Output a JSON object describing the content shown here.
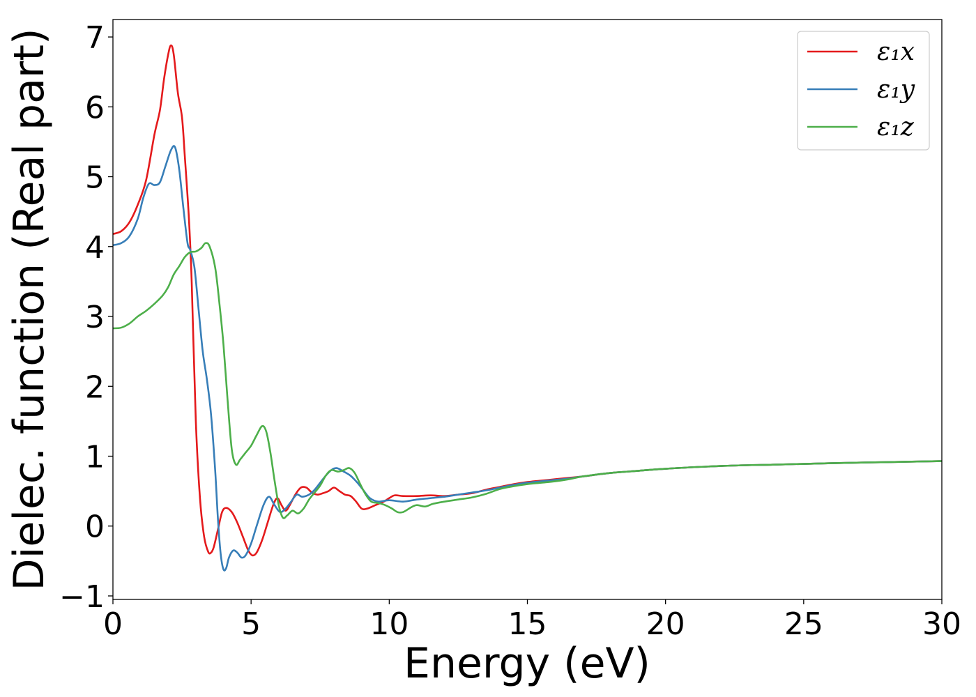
{
  "chart_data": {
    "type": "line",
    "xlabel": "Energy (eV)",
    "ylabel": "Dielec. function (Real part)",
    "xlim": [
      0,
      30
    ],
    "ylim": [
      -1.05,
      7.25
    ],
    "xticks": [
      0,
      5,
      10,
      15,
      20,
      25,
      30
    ],
    "yticks": [
      -1,
      0,
      1,
      2,
      3,
      4,
      5,
      6,
      7
    ],
    "xtick_labels": [
      "0",
      "5",
      "10",
      "15",
      "20",
      "25",
      "30"
    ],
    "ytick_labels": [
      "−1",
      "0",
      "1",
      "2",
      "3",
      "4",
      "5",
      "6",
      "7"
    ],
    "grid": false,
    "legend_position": "top-right",
    "series": [
      {
        "name": "ε₁x",
        "color": "#e41a1c",
        "points": [
          [
            0,
            4.18
          ],
          [
            0.3,
            4.22
          ],
          [
            0.6,
            4.35
          ],
          [
            0.9,
            4.6
          ],
          [
            1.2,
            4.95
          ],
          [
            1.5,
            5.6
          ],
          [
            1.7,
            5.95
          ],
          [
            1.85,
            6.4
          ],
          [
            2.0,
            6.75
          ],
          [
            2.1,
            6.88
          ],
          [
            2.2,
            6.75
          ],
          [
            2.35,
            6.2
          ],
          [
            2.5,
            5.85
          ],
          [
            2.6,
            5.3
          ],
          [
            2.75,
            4.4
          ],
          [
            2.85,
            3.5
          ],
          [
            3.0,
            1.5
          ],
          [
            3.15,
            0.4
          ],
          [
            3.3,
            -0.15
          ],
          [
            3.45,
            -0.37
          ],
          [
            3.55,
            -0.38
          ],
          [
            3.65,
            -0.3
          ],
          [
            3.8,
            -0.05
          ],
          [
            3.95,
            0.2
          ],
          [
            4.1,
            0.26
          ],
          [
            4.3,
            0.2
          ],
          [
            4.5,
            0.05
          ],
          [
            4.7,
            -0.15
          ],
          [
            4.9,
            -0.35
          ],
          [
            5.05,
            -0.42
          ],
          [
            5.2,
            -0.38
          ],
          [
            5.4,
            -0.2
          ],
          [
            5.6,
            0.05
          ],
          [
            5.8,
            0.3
          ],
          [
            5.95,
            0.4
          ],
          [
            6.1,
            0.3
          ],
          [
            6.25,
            0.22
          ],
          [
            6.4,
            0.3
          ],
          [
            6.6,
            0.45
          ],
          [
            6.8,
            0.55
          ],
          [
            7.0,
            0.55
          ],
          [
            7.2,
            0.48
          ],
          [
            7.4,
            0.45
          ],
          [
            7.6,
            0.47
          ],
          [
            7.8,
            0.5
          ],
          [
            8.0,
            0.55
          ],
          [
            8.2,
            0.5
          ],
          [
            8.4,
            0.45
          ],
          [
            8.6,
            0.43
          ],
          [
            8.8,
            0.35
          ],
          [
            9.0,
            0.25
          ],
          [
            9.2,
            0.25
          ],
          [
            9.5,
            0.3
          ],
          [
            9.8,
            0.35
          ],
          [
            10.0,
            0.4
          ],
          [
            10.2,
            0.44
          ],
          [
            10.5,
            0.43
          ],
          [
            11.0,
            0.43
          ],
          [
            11.5,
            0.44
          ],
          [
            12.0,
            0.43
          ],
          [
            12.5,
            0.45
          ],
          [
            13.0,
            0.47
          ],
          [
            13.5,
            0.52
          ],
          [
            14.0,
            0.56
          ],
          [
            14.5,
            0.6
          ],
          [
            15.0,
            0.63
          ],
          [
            15.5,
            0.65
          ],
          [
            16.0,
            0.67
          ],
          [
            16.5,
            0.69
          ],
          [
            17.0,
            0.71
          ],
          [
            18.0,
            0.76
          ],
          [
            19.0,
            0.79
          ],
          [
            20.0,
            0.82
          ],
          [
            22.0,
            0.86
          ],
          [
            24.0,
            0.88
          ],
          [
            26.0,
            0.9
          ],
          [
            28.0,
            0.915
          ],
          [
            30.0,
            0.93
          ]
        ]
      },
      {
        "name": "ε₁y",
        "color": "#377eb8",
        "points": [
          [
            0,
            4.02
          ],
          [
            0.3,
            4.05
          ],
          [
            0.6,
            4.15
          ],
          [
            0.9,
            4.4
          ],
          [
            1.1,
            4.7
          ],
          [
            1.3,
            4.9
          ],
          [
            1.5,
            4.88
          ],
          [
            1.7,
            4.92
          ],
          [
            1.9,
            5.15
          ],
          [
            2.1,
            5.38
          ],
          [
            2.25,
            5.42
          ],
          [
            2.4,
            5.1
          ],
          [
            2.55,
            4.55
          ],
          [
            2.7,
            4.05
          ],
          [
            2.8,
            3.95
          ],
          [
            2.95,
            3.7
          ],
          [
            3.1,
            3.1
          ],
          [
            3.25,
            2.5
          ],
          [
            3.4,
            2.1
          ],
          [
            3.55,
            1.6
          ],
          [
            3.7,
            0.8
          ],
          [
            3.8,
            0.1
          ],
          [
            3.9,
            -0.4
          ],
          [
            4.0,
            -0.62
          ],
          [
            4.1,
            -0.6
          ],
          [
            4.2,
            -0.45
          ],
          [
            4.35,
            -0.35
          ],
          [
            4.5,
            -0.38
          ],
          [
            4.65,
            -0.45
          ],
          [
            4.8,
            -0.42
          ],
          [
            5.0,
            -0.25
          ],
          [
            5.2,
            0.0
          ],
          [
            5.45,
            0.3
          ],
          [
            5.65,
            0.42
          ],
          [
            5.85,
            0.3
          ],
          [
            6.05,
            0.2
          ],
          [
            6.25,
            0.25
          ],
          [
            6.45,
            0.35
          ],
          [
            6.65,
            0.45
          ],
          [
            6.85,
            0.42
          ],
          [
            7.1,
            0.45
          ],
          [
            7.3,
            0.52
          ],
          [
            7.5,
            0.62
          ],
          [
            7.7,
            0.72
          ],
          [
            7.9,
            0.8
          ],
          [
            8.1,
            0.83
          ],
          [
            8.35,
            0.78
          ],
          [
            8.6,
            0.72
          ],
          [
            8.85,
            0.62
          ],
          [
            9.05,
            0.52
          ],
          [
            9.3,
            0.4
          ],
          [
            9.6,
            0.35
          ],
          [
            10.0,
            0.37
          ],
          [
            10.5,
            0.35
          ],
          [
            11.0,
            0.38
          ],
          [
            11.5,
            0.4
          ],
          [
            12.0,
            0.42
          ],
          [
            12.5,
            0.45
          ],
          [
            13.0,
            0.48
          ],
          [
            13.5,
            0.51
          ],
          [
            14.0,
            0.55
          ],
          [
            14.5,
            0.59
          ],
          [
            15.0,
            0.62
          ],
          [
            15.5,
            0.64
          ],
          [
            16.0,
            0.66
          ],
          [
            16.5,
            0.68
          ],
          [
            17.0,
            0.71
          ],
          [
            18.0,
            0.76
          ],
          [
            19.0,
            0.79
          ],
          [
            20.0,
            0.82
          ],
          [
            22.0,
            0.86
          ],
          [
            24.0,
            0.88
          ],
          [
            26.0,
            0.9
          ],
          [
            28.0,
            0.915
          ],
          [
            30.0,
            0.93
          ]
        ]
      },
      {
        "name": "ε₁z",
        "color": "#4daf4a",
        "points": [
          [
            0,
            2.83
          ],
          [
            0.3,
            2.84
          ],
          [
            0.6,
            2.9
          ],
          [
            0.9,
            3.0
          ],
          [
            1.2,
            3.08
          ],
          [
            1.5,
            3.18
          ],
          [
            1.8,
            3.3
          ],
          [
            2.0,
            3.42
          ],
          [
            2.2,
            3.6
          ],
          [
            2.4,
            3.72
          ],
          [
            2.6,
            3.85
          ],
          [
            2.8,
            3.92
          ],
          [
            3.0,
            3.93
          ],
          [
            3.2,
            3.98
          ],
          [
            3.35,
            4.05
          ],
          [
            3.5,
            4.0
          ],
          [
            3.7,
            3.7
          ],
          [
            3.85,
            3.2
          ],
          [
            4.0,
            2.6
          ],
          [
            4.15,
            1.8
          ],
          [
            4.3,
            1.1
          ],
          [
            4.45,
            0.88
          ],
          [
            4.6,
            0.95
          ],
          [
            4.8,
            1.05
          ],
          [
            5.0,
            1.15
          ],
          [
            5.2,
            1.3
          ],
          [
            5.4,
            1.43
          ],
          [
            5.55,
            1.35
          ],
          [
            5.7,
            1.05
          ],
          [
            5.85,
            0.65
          ],
          [
            6.0,
            0.3
          ],
          [
            6.15,
            0.12
          ],
          [
            6.3,
            0.15
          ],
          [
            6.5,
            0.22
          ],
          [
            6.7,
            0.18
          ],
          [
            6.9,
            0.25
          ],
          [
            7.1,
            0.38
          ],
          [
            7.3,
            0.48
          ],
          [
            7.5,
            0.58
          ],
          [
            7.7,
            0.72
          ],
          [
            7.9,
            0.8
          ],
          [
            8.15,
            0.78
          ],
          [
            8.35,
            0.8
          ],
          [
            8.55,
            0.83
          ],
          [
            8.75,
            0.76
          ],
          [
            8.95,
            0.6
          ],
          [
            9.15,
            0.45
          ],
          [
            9.35,
            0.35
          ],
          [
            9.6,
            0.33
          ],
          [
            9.85,
            0.3
          ],
          [
            10.1,
            0.25
          ],
          [
            10.3,
            0.2
          ],
          [
            10.5,
            0.2
          ],
          [
            10.8,
            0.27
          ],
          [
            11.0,
            0.3
          ],
          [
            11.3,
            0.28
          ],
          [
            11.6,
            0.32
          ],
          [
            12.0,
            0.35
          ],
          [
            12.5,
            0.38
          ],
          [
            13.0,
            0.41
          ],
          [
            13.5,
            0.46
          ],
          [
            14.0,
            0.53
          ],
          [
            14.5,
            0.57
          ],
          [
            15.0,
            0.6
          ],
          [
            15.5,
            0.62
          ],
          [
            16.0,
            0.64
          ],
          [
            16.5,
            0.67
          ],
          [
            17.0,
            0.71
          ],
          [
            18.0,
            0.76
          ],
          [
            19.0,
            0.79
          ],
          [
            20.0,
            0.82
          ],
          [
            22.0,
            0.86
          ],
          [
            24.0,
            0.88
          ],
          [
            26.0,
            0.9
          ],
          [
            28.0,
            0.915
          ],
          [
            30.0,
            0.93
          ]
        ]
      }
    ]
  }
}
